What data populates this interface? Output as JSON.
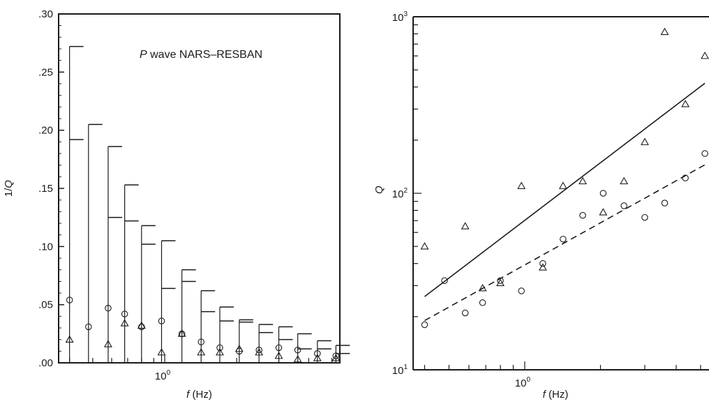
{
  "chart_data": [
    {
      "type": "scatter",
      "title": "",
      "annotation": {
        "italic": "P",
        "text": " wave NARS–RESBAN"
      },
      "xlabel": {
        "var": "f",
        "unit": " (Hz)"
      },
      "ylabel": {
        "var": "Q",
        "prefix": "1/"
      },
      "x_scale": "log",
      "xlim": [
        0.36,
        5.4
      ],
      "ylim": [
        0,
        0.3
      ],
      "x_tick_labels": [
        {
          "x": 1,
          "base": "10",
          "exp": "0"
        }
      ],
      "y_tick_labels": [
        {
          "v": 0,
          "label": ".00"
        },
        {
          "v": 0.05,
          "label": ".05"
        },
        {
          "v": 0.1,
          "label": ".10"
        },
        {
          "v": 0.15,
          "label": ".15"
        },
        {
          "v": 0.2,
          "label": ".20"
        },
        {
          "v": 0.25,
          "label": ".25"
        },
        {
          "v": 0.3,
          "label": ".30"
        }
      ],
      "grid": false,
      "errorbars": [
        {
          "x": 0.4,
          "upper": 0.272,
          "mid": 0.192
        },
        {
          "x": 0.48,
          "upper": 0.205
        },
        {
          "x": 0.58,
          "upper": 0.186,
          "mid": 0.125
        },
        {
          "x": 0.68,
          "upper": 0.153,
          "mid": 0.122
        },
        {
          "x": 0.8,
          "upper": 0.118,
          "mid": 0.102
        },
        {
          "x": 0.97,
          "upper": 0.105,
          "mid": 0.064
        },
        {
          "x": 1.18,
          "upper": 0.08,
          "mid": 0.07
        },
        {
          "x": 1.42,
          "upper": 0.062,
          "mid": 0.044
        },
        {
          "x": 1.7,
          "upper": 0.048,
          "mid": 0.036
        },
        {
          "x": 2.05,
          "upper": 0.037,
          "mid": 0.035
        },
        {
          "x": 2.48,
          "upper": 0.033,
          "mid": 0.026
        },
        {
          "x": 3.0,
          "upper": 0.031,
          "mid": 0.02
        },
        {
          "x": 3.6,
          "upper": 0.025,
          "mid": 0.012
        },
        {
          "x": 4.35,
          "upper": 0.019,
          "mid": 0.012
        },
        {
          "x": 5.2,
          "upper": 0.015,
          "mid": 0.008
        }
      ],
      "series": [
        {
          "marker": "circle",
          "points": [
            {
              "x": 0.4,
              "y": 0.054
            },
            {
              "x": 0.48,
              "y": 0.031
            },
            {
              "x": 0.58,
              "y": 0.047
            },
            {
              "x": 0.68,
              "y": 0.042
            },
            {
              "x": 0.8,
              "y": 0.031
            },
            {
              "x": 0.97,
              "y": 0.036
            },
            {
              "x": 1.18,
              "y": 0.025
            },
            {
              "x": 1.42,
              "y": 0.018
            },
            {
              "x": 1.7,
              "y": 0.013
            },
            {
              "x": 2.05,
              "y": 0.01
            },
            {
              "x": 2.48,
              "y": 0.011
            },
            {
              "x": 3.0,
              "y": 0.013
            },
            {
              "x": 3.6,
              "y": 0.011
            },
            {
              "x": 4.35,
              "y": 0.008
            },
            {
              "x": 5.2,
              "y": 0.006
            }
          ]
        },
        {
          "marker": "triangle",
          "points": [
            {
              "x": 0.4,
              "y": 0.02
            },
            {
              "x": 0.58,
              "y": 0.016
            },
            {
              "x": 0.68,
              "y": 0.034
            },
            {
              "x": 0.8,
              "y": 0.032
            },
            {
              "x": 0.97,
              "y": 0.009
            },
            {
              "x": 1.18,
              "y": 0.025
            },
            {
              "x": 1.42,
              "y": 0.009
            },
            {
              "x": 1.7,
              "y": 0.009
            },
            {
              "x": 2.05,
              "y": 0.012
            },
            {
              "x": 2.48,
              "y": 0.009
            },
            {
              "x": 3.0,
              "y": 0.006
            },
            {
              "x": 3.6,
              "y": 0.003
            },
            {
              "x": 4.35,
              "y": 0.004
            },
            {
              "x": 5.2,
              "y": 0.004
            }
          ]
        }
      ]
    },
    {
      "type": "scatter",
      "title": "",
      "xlabel": {
        "var": "f",
        "unit": " (Hz)"
      },
      "ylabel": {
        "var": "Q"
      },
      "x_scale": "log",
      "y_scale": "log",
      "xlim": [
        0.36,
        5.4
      ],
      "ylim": [
        10,
        1000
      ],
      "x_tick_labels": [
        {
          "x": 1,
          "base": "10",
          "exp": "0"
        }
      ],
      "y_tick_labels": [
        {
          "v": 10,
          "base": "10",
          "exp": "1"
        },
        {
          "v": 100,
          "base": "10",
          "exp": "2"
        },
        {
          "v": 1000,
          "base": "10",
          "exp": "3"
        }
      ],
      "grid": false,
      "series": [
        {
          "marker": "triangle",
          "points": [
            {
              "x": 0.4,
              "y": 50
            },
            {
              "x": 0.58,
              "y": 65
            },
            {
              "x": 0.68,
              "y": 29
            },
            {
              "x": 0.8,
              "y": 31
            },
            {
              "x": 0.97,
              "y": 110
            },
            {
              "x": 1.18,
              "y": 38
            },
            {
              "x": 1.42,
              "y": 110
            },
            {
              "x": 1.7,
              "y": 117
            },
            {
              "x": 2.05,
              "y": 78
            },
            {
              "x": 2.48,
              "y": 117
            },
            {
              "x": 3.0,
              "y": 195
            },
            {
              "x": 3.6,
              "y": 820
            },
            {
              "x": 4.35,
              "y": 320
            },
            {
              "x": 5.2,
              "y": 600
            }
          ]
        },
        {
          "marker": "circle",
          "points": [
            {
              "x": 0.4,
              "y": 18
            },
            {
              "x": 0.48,
              "y": 32
            },
            {
              "x": 0.58,
              "y": 21
            },
            {
              "x": 0.68,
              "y": 24
            },
            {
              "x": 0.8,
              "y": 32
            },
            {
              "x": 0.97,
              "y": 28
            },
            {
              "x": 1.18,
              "y": 40
            },
            {
              "x": 1.42,
              "y": 55
            },
            {
              "x": 1.7,
              "y": 75
            },
            {
              "x": 2.05,
              "y": 100
            },
            {
              "x": 2.48,
              "y": 85
            },
            {
              "x": 3.0,
              "y": 73
            },
            {
              "x": 3.6,
              "y": 88
            },
            {
              "x": 4.35,
              "y": 122
            },
            {
              "x": 5.2,
              "y": 168
            }
          ]
        }
      ],
      "fit_lines": [
        {
          "style": "solid",
          "x": [
            0.4,
            5.2
          ],
          "y": [
            26,
            420
          ]
        },
        {
          "style": "dashed",
          "x": [
            0.4,
            5.2
          ],
          "y": [
            19,
            145
          ]
        }
      ]
    }
  ]
}
